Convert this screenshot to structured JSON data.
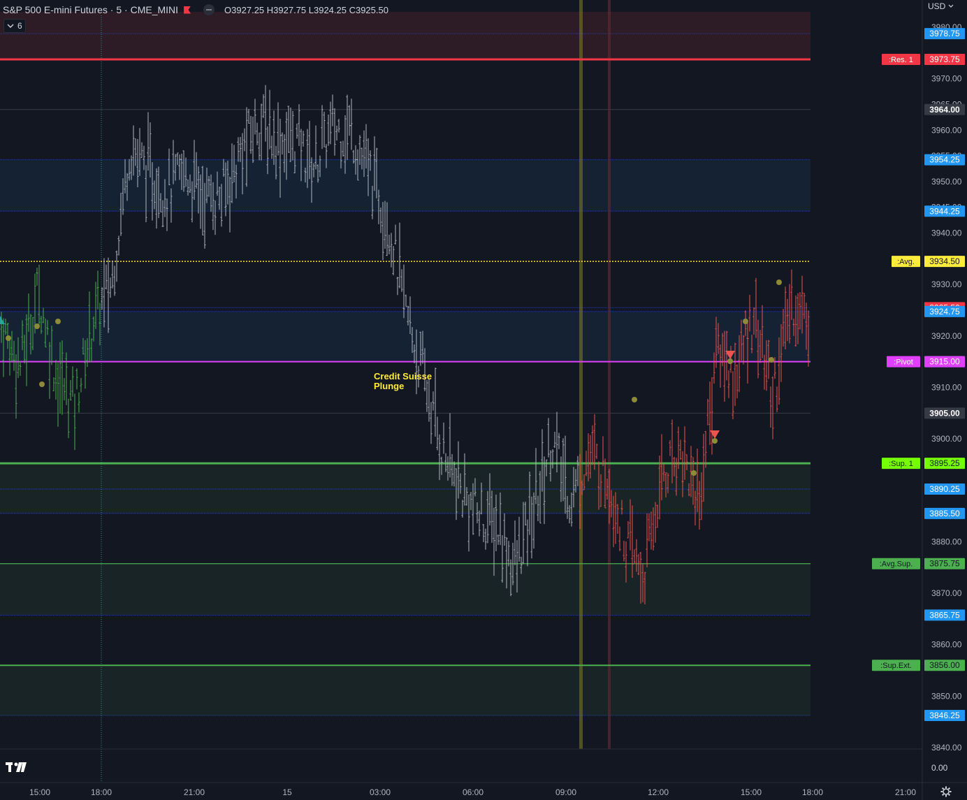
{
  "header": {
    "symbol": "S&P 500 E-mini Futures · 5 · CME_MINI",
    "ohlc": "O3927.25 H3927.75 L3924.25 C3925.50",
    "indicator_count": "6",
    "currency": "USD"
  },
  "icons": [
    "chevron-down-icon",
    "flag-icon",
    "tradingview-logo-icon",
    "gear-icon"
  ],
  "colors": {
    "background": "#131722",
    "bar_pre": "#4caf50",
    "bar_main": "#b2b5be",
    "bar_post": "#ef5350",
    "resistance": "#f23645",
    "support": "#4caf50",
    "pivot": "#e040fb",
    "avg": "#ffeb3b",
    "blue_level": "#2196f3"
  },
  "chart_data": {
    "type": "bar",
    "y_axis": {
      "ticks": [
        3980,
        3970,
        3965,
        3960,
        3955,
        3950,
        3945,
        3940,
        3930,
        3920,
        3910,
        3900,
        3880,
        3870,
        3860,
        3850,
        3840
      ],
      "price_scale_bottom_value": "0.00",
      "range": [
        3840,
        3983
      ]
    },
    "x_axis": {
      "ticks": [
        "15:00",
        "18:00",
        "21:00",
        "15",
        "03:00",
        "06:00",
        "09:00",
        "12:00",
        "15:00",
        "18:00",
        "21:00"
      ]
    },
    "level_lines": [
      {
        "label": ":Res. 1",
        "price": "3973.75",
        "value": 3973.75,
        "color": "#f23645",
        "style": "solid-thick"
      },
      {
        "label": ":Avg.",
        "price": "3934.50",
        "value": 3934.5,
        "color": "#ffeb3b",
        "style": "dotted"
      },
      {
        "label": ":Pivot",
        "price": "3915.00",
        "value": 3915.0,
        "color": "#e040fb",
        "style": "solid"
      },
      {
        "label": ":Sup. 1",
        "price": "3895.25",
        "value": 3895.25,
        "color": "#76ff03",
        "style": "solid-thick"
      },
      {
        "label": ":Avg.Sup.",
        "price": "3875.75",
        "value": 3875.75,
        "color": "#4caf50",
        "style": "solid-thin"
      },
      {
        "label": ":Sup.Ext.",
        "price": "3856.00",
        "value": 3856.0,
        "color": "#4caf50",
        "style": "solid"
      }
    ],
    "price_tags": [
      {
        "price": "3978.75",
        "value": 3978.75,
        "color": "#2196f3"
      },
      {
        "price": "3964.00",
        "value": 3964.0,
        "color": "#363a45"
      },
      {
        "price": "3954.25",
        "value": 3954.25,
        "color": "#2196f3"
      },
      {
        "price": "3944.25",
        "value": 3944.25,
        "color": "#2196f3"
      },
      {
        "price": "3925.50",
        "value": 3925.5,
        "color": "#f23645"
      },
      {
        "price": "3924.75",
        "value": 3924.75,
        "color": "#2196f3"
      },
      {
        "price": "3915.00",
        "value": 3915.0,
        "color": "#2196f3"
      },
      {
        "price": "3905.00",
        "value": 3905.0,
        "color": "#363a45"
      },
      {
        "price": "3890.25",
        "value": 3890.25,
        "color": "#2196f3"
      },
      {
        "price": "3885.50",
        "value": 3885.5,
        "color": "#2196f3"
      },
      {
        "price": "3865.75",
        "value": 3865.75,
        "color": "#2196f3"
      },
      {
        "price": "3846.25",
        "value": 3846.25,
        "color": "#2196f3"
      }
    ],
    "zones": [
      {
        "from": 3973.75,
        "to": 3983,
        "color": "#f23645"
      },
      {
        "from": 3944.25,
        "to": 3954.25,
        "color": "#2196f3"
      },
      {
        "from": 3915.0,
        "to": 3924.75,
        "color": "#2196f3"
      },
      {
        "from": 3885.5,
        "to": 3895.25,
        "color": "#4caf50"
      },
      {
        "from": 3865.75,
        "to": 3875.75,
        "color": "#4caf50"
      },
      {
        "from": 3846.25,
        "to": 3856.0,
        "color": "#4caf50"
      }
    ],
    "annotation": {
      "text_line1": "Credit Suisse",
      "text_line2": "Plunge",
      "price": 3915,
      "color": "#ffeb3b"
    },
    "price_path": [
      {
        "price": 3922
      },
      {
        "price": 3914
      },
      {
        "price": 3929
      },
      {
        "price": 3912
      },
      {
        "price": 3907
      },
      {
        "price": 3923
      },
      {
        "price": 3930
      },
      {
        "price": 3957
      },
      {
        "price": 3952
      },
      {
        "price": 3948
      },
      {
        "price": 3952
      },
      {
        "price": 3947
      },
      {
        "price": 3947
      },
      {
        "price": 3955
      },
      {
        "price": 3962
      },
      {
        "price": 3958
      },
      {
        "price": 3958
      },
      {
        "price": 3953
      },
      {
        "price": 3960
      },
      {
        "price": 3960
      },
      {
        "price": 3952
      },
      {
        "price": 3944
      },
      {
        "price": 3925
      },
      {
        "price": 3912
      },
      {
        "price": 3898
      },
      {
        "price": 3890
      },
      {
        "price": 3885
      },
      {
        "price": 3883
      },
      {
        "price": 3875
      },
      {
        "price": 3886
      },
      {
        "price": 3900
      },
      {
        "price": 3888
      },
      {
        "price": 3897
      },
      {
        "price": 3893
      },
      {
        "price": 3880
      },
      {
        "price": 3873
      },
      {
        "price": 3893
      },
      {
        "price": 3898
      },
      {
        "price": 3888
      },
      {
        "price": 3918
      },
      {
        "price": 3912
      },
      {
        "price": 3925
      },
      {
        "price": 3908
      },
      {
        "price": 3926
      },
      {
        "price": 3924
      }
    ]
  }
}
